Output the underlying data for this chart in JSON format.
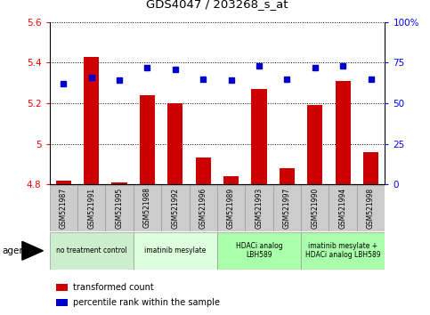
{
  "title": "GDS4047 / 203268_s_at",
  "samples": [
    "GSM521987",
    "GSM521991",
    "GSM521995",
    "GSM521988",
    "GSM521992",
    "GSM521996",
    "GSM521989",
    "GSM521993",
    "GSM521997",
    "GSM521990",
    "GSM521994",
    "GSM521998"
  ],
  "bar_values": [
    4.82,
    5.43,
    4.81,
    5.24,
    5.2,
    4.93,
    4.84,
    5.27,
    4.88,
    5.19,
    5.31,
    4.96
  ],
  "dot_values": [
    62,
    66,
    64,
    72,
    71,
    65,
    64,
    73,
    65,
    72,
    73,
    65
  ],
  "ylim_left": [
    4.8,
    5.6
  ],
  "ylim_right": [
    0,
    100
  ],
  "yticks_left": [
    4.8,
    5.0,
    5.2,
    5.4,
    5.6
  ],
  "yticks_right": [
    0,
    25,
    50,
    75,
    100
  ],
  "bar_color": "#cc0000",
  "dot_color": "#0000cc",
  "bar_width": 0.55,
  "group_defs": [
    {
      "start": 0,
      "end": 2,
      "label": "no treatment control",
      "color": "#cceecc"
    },
    {
      "start": 3,
      "end": 5,
      "label": "imatinib mesylate",
      "color": "#ddffdd"
    },
    {
      "start": 6,
      "end": 8,
      "label": "HDACi analog\nLBH589",
      "color": "#aaffaa"
    },
    {
      "start": 9,
      "end": 11,
      "label": "imatinib mesylate +\nHDACi analog LBH589",
      "color": "#aaffaa"
    }
  ],
  "agent_label": "agent",
  "legend_bar_label": "transformed count",
  "legend_dot_label": "percentile rank within the sample",
  "sample_bg": "#cccccc",
  "plot_bg": "#ffffff"
}
